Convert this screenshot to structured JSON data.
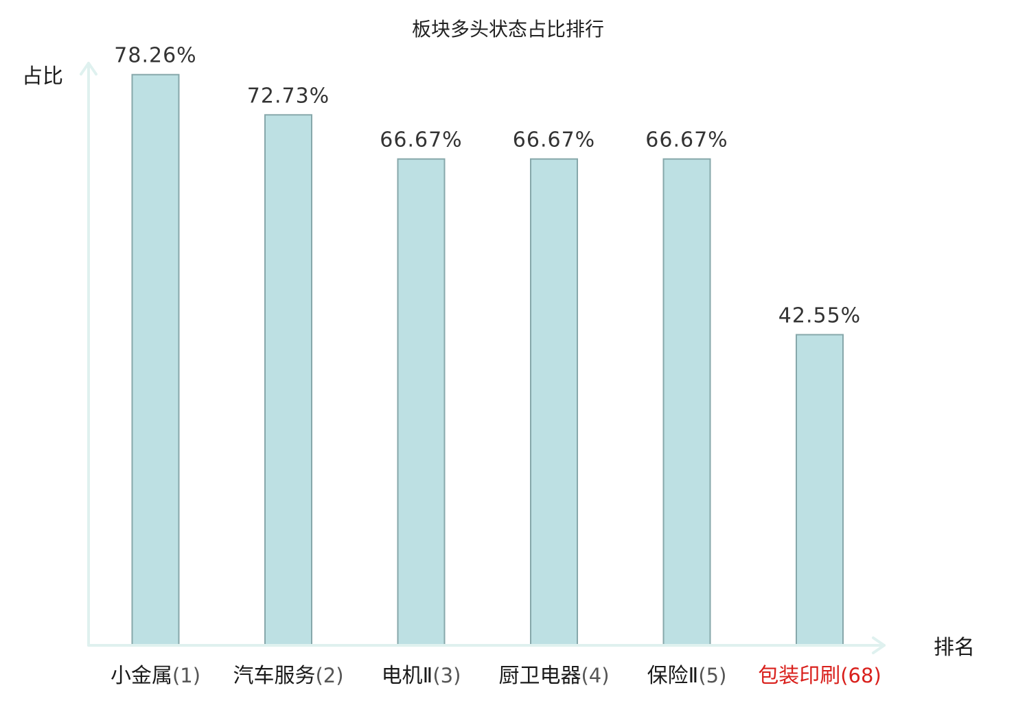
{
  "chart_data": {
    "type": "bar",
    "title": "板块多头状态占比排行",
    "xlabel": "排名",
    "ylabel": "占比",
    "categories": [
      "小金属",
      "汽车服务",
      "电机Ⅱ",
      "厨卫电器",
      "保险Ⅱ",
      "包装印刷"
    ],
    "ranks": [
      "(1)",
      "(2)",
      "(3)",
      "(4)",
      "(5)",
      "(68)"
    ],
    "values": [
      78.26,
      72.73,
      66.67,
      66.67,
      66.67,
      42.55
    ],
    "value_labels": [
      "78.26%",
      "72.73%",
      "66.67%",
      "66.67%",
      "66.67%",
      "42.55%"
    ],
    "highlight_index": 5,
    "ylim": [
      0,
      100
    ],
    "grid": false,
    "colors": {
      "bar_fill": "#bde0e3",
      "bar_stroke": "#86a7aa",
      "axis": "#dff1ef",
      "label": "#1a1a1a",
      "rank_label": "#555555",
      "highlight": "#d9201c",
      "value_text": "#333333"
    }
  }
}
